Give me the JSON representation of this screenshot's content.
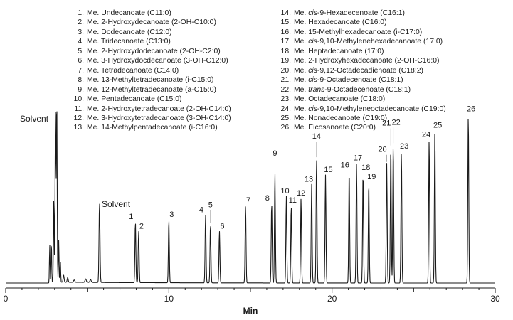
{
  "chart_data": {
    "type": "line",
    "xlabel": "Min",
    "xlim": [
      0,
      30
    ],
    "xticks": [
      0,
      10,
      20,
      30
    ],
    "solvent_labels": [
      "Solvent",
      "Solvent"
    ],
    "peaks": [
      {
        "id": "1",
        "name": "Me. Undecanoate (C11:0)",
        "rt": 7.95,
        "height": 0.26
      },
      {
        "id": "2",
        "name": "Me. 2-Hydroxydecanoate (2-OH-C10:0)",
        "rt": 8.15,
        "height": 0.22
      },
      {
        "id": "3",
        "name": "Me. Dodecanoate (C12:0)",
        "rt": 10.0,
        "height": 0.27
      },
      {
        "id": "4",
        "name": "Me. Tridecanoate (C13:0)",
        "rt": 12.25,
        "height": 0.29
      },
      {
        "id": "5",
        "name": "Me. 2-Hydroxydodecanoate (2-OH-C2:0)",
        "rt": 12.55,
        "height": 0.25
      },
      {
        "id": "6",
        "name": "Me. 3-Hydroxydocdecanoate (3-OH-C12:0)",
        "rt": 13.1,
        "height": 0.22
      },
      {
        "id": "7",
        "name": "Me. Tetradecanoate (C14:0)",
        "rt": 14.7,
        "height": 0.33
      },
      {
        "id": "8",
        "name": "Me. 13-Methyltetradecanoate (i-C15:0)",
        "rt": 16.3,
        "height": 0.34
      },
      {
        "id": "9",
        "name": "Me. 12-Methyltetradecanoate (a-C15:0)",
        "rt": 16.5,
        "height": 0.47
      },
      {
        "id": "10",
        "name": "Me. Pentadecanoate (C15:0)",
        "rt": 17.2,
        "height": 0.37
      },
      {
        "id": "11",
        "name": "Me. 2-Hydroxytetradecanoate (2-OH-C14:0)",
        "rt": 17.5,
        "height": 0.33
      },
      {
        "id": "12",
        "name": "Me. 3-Hydroxytetradecanoate (3-OH-C14:0)",
        "rt": 18.1,
        "height": 0.36
      },
      {
        "id": "13",
        "name": "Me. 14-Methylpentadecanoate (i-C16:0)",
        "rt": 18.75,
        "height": 0.42
      },
      {
        "id": "14",
        "name": "Me. cis-9-Hexadecenoate (C16:1)",
        "rt": 19.05,
        "height": 0.53
      },
      {
        "id": "15",
        "name": "Me. Hexadecanoate (C16:0)",
        "rt": 19.6,
        "height": 0.46
      },
      {
        "id": "16",
        "name": "Me. 15-Methylhexadecanoate (i-C17:0)",
        "rt": 21.05,
        "height": 0.48
      },
      {
        "id": "17",
        "name": "Me. cis-9,10-Methylenehexadecanoate (17:0)",
        "rt": 21.5,
        "height": 0.51
      },
      {
        "id": "18",
        "name": "Me. Heptadecanoate (17:0)",
        "rt": 21.9,
        "height": 0.47
      },
      {
        "id": "19",
        "name": "Me. 2-Hydroxyhexadecanoate (2-OH-C16:0)",
        "rt": 22.25,
        "height": 0.43
      },
      {
        "id": "20",
        "name": "Me. cis-9,12-Octadecadienoate (C18:2)",
        "rt": 23.35,
        "height": 0.51
      },
      {
        "id": "21",
        "name": "Me. cis-9-Octadecenoate (C18:1)",
        "rt": 23.6,
        "height": 0.58
      },
      {
        "id": "22",
        "name": "Me. trans-9-Octadecenoate (C18:1)",
        "rt": 23.75,
        "height": 0.59
      },
      {
        "id": "23",
        "name": "Me. Octadecanoate (C18:0)",
        "rt": 24.25,
        "height": 0.56
      },
      {
        "id": "24",
        "name": "Me. cis-9,10-Methyleneoctadecanoate (C19:0)",
        "rt": 25.95,
        "height": 0.61
      },
      {
        "id": "25",
        "name": "Me. Nonadecanoate (C19:0)",
        "rt": 26.3,
        "height": 0.65
      },
      {
        "id": "26",
        "name": "Me. Eicosanoate (C20:0)",
        "rt": 28.35,
        "height": 0.72
      }
    ]
  },
  "legend": {
    "left": [
      {
        "num": "1.",
        "text": "Me. Undecanoate (C11:0)"
      },
      {
        "num": "2.",
        "text": "Me. 2-Hydroxydecanoate (2-OH-C10:0)"
      },
      {
        "num": "3.",
        "text": "Me. Dodecanoate (C12:0)"
      },
      {
        "num": "4.",
        "text": "Me. Tridecanoate (C13:0)"
      },
      {
        "num": "5.",
        "text": "Me. 2-Hydroxydodecanoate (2-OH-C2:0)"
      },
      {
        "num": "6.",
        "text": "Me. 3-Hydroxydocdecanoate (3-OH-C12:0)"
      },
      {
        "num": "7.",
        "text": "Me. Tetradecanoate (C14:0)"
      },
      {
        "num": "8.",
        "text": "Me. 13-Methyltetradecanoate (i-C15:0)"
      },
      {
        "num": "9.",
        "text": "Me. 12-Methyltetradecanoate (a-C15:0)"
      },
      {
        "num": "10.",
        "text": "Me. Pentadecanoate (C15:0)"
      },
      {
        "num": "11.",
        "text": "Me. 2-Hydroxytetradecanoate (2-OH-C14:0)"
      },
      {
        "num": "12.",
        "text": "Me. 3-Hydroxytetradecanoate (3-OH-C14:0)"
      },
      {
        "num": "13.",
        "text": "Me. 14-Methylpentadecanoate (i-C16:0)"
      }
    ],
    "right": [
      {
        "num": "14.",
        "pre": "Me. ",
        "it": "cis",
        "post": "-9-Hexadecenoate (C16:1)"
      },
      {
        "num": "15.",
        "pre": "Me. Hexadecanoate (C16:0)",
        "it": "",
        "post": ""
      },
      {
        "num": "16.",
        "pre": "Me. 15-Methylhexadecanoate (i-C17:0)",
        "it": "",
        "post": ""
      },
      {
        "num": "17.",
        "pre": "Me. ",
        "it": "cis",
        "post": "-9,10-Methylenehexadecanoate (17:0)"
      },
      {
        "num": "18.",
        "pre": "Me. Heptadecanoate (17:0)",
        "it": "",
        "post": ""
      },
      {
        "num": "19.",
        "pre": "Me. 2-Hydroxyhexadecanoate (2-OH-C16:0)",
        "it": "",
        "post": ""
      },
      {
        "num": "20.",
        "pre": "Me. ",
        "it": "cis",
        "post": "-9,12-Octadecadienoate (C18:2)"
      },
      {
        "num": "21.",
        "pre": "Me. ",
        "it": "cis",
        "post": "-9-Octadecenoate (C18:1)"
      },
      {
        "num": "22.",
        "pre": "Me. ",
        "it": "trans",
        "post": "-9-Octadecenoate (C18:1)"
      },
      {
        "num": "23.",
        "pre": "Me. Octadecanoate (C18:0)",
        "it": "",
        "post": ""
      },
      {
        "num": "24.",
        "pre": "Me. ",
        "it": "cis",
        "post": "-9,10-Methyleneoctadecanoate (C19:0)"
      },
      {
        "num": "25.",
        "pre": "Me. Nonadecanoate (C19:0)",
        "it": "",
        "post": ""
      },
      {
        "num": "26.",
        "pre": "Me. Eicosanoate (C20:0)",
        "it": "",
        "post": ""
      }
    ]
  },
  "colors": {
    "trace": "#1a1a1a",
    "axis": "#1a1a1a",
    "leader": "#999999"
  }
}
